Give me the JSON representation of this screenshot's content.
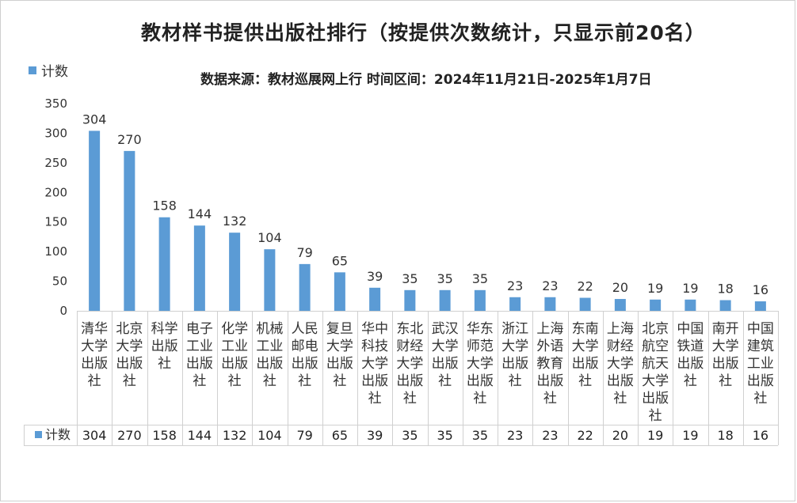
{
  "chart_data": {
    "type": "bar",
    "title": "教材样书提供出版社排行（按提供次数统计，只显示前20名）",
    "subtitle": "数据来源：教材巡展网上行  时间区间：2024年11月21日-2025年1月7日",
    "series_name": "计数",
    "color": "#5b9bd5",
    "ylim": [
      0,
      350
    ],
    "yticks": [
      0,
      50,
      100,
      150,
      200,
      250,
      300,
      350
    ],
    "grid": false,
    "legend": "top-left",
    "data_table": true,
    "categories": [
      [
        "清华",
        "大学",
        "出版",
        "社"
      ],
      [
        "北京",
        "大学",
        "出版",
        "社"
      ],
      [
        "科学",
        "出版",
        "社"
      ],
      [
        "电子",
        "工业",
        "出版",
        "社"
      ],
      [
        "化学",
        "工业",
        "出版",
        "社"
      ],
      [
        "机械",
        "工业",
        "出版",
        "社"
      ],
      [
        "人民",
        "邮电",
        "出版",
        "社"
      ],
      [
        "复旦",
        "大学",
        "出版",
        "社"
      ],
      [
        "华中",
        "科技",
        "大学",
        "出版",
        "社"
      ],
      [
        "东北",
        "财经",
        "大学",
        "出版",
        "社"
      ],
      [
        "武汉",
        "大学",
        "出版",
        "社"
      ],
      [
        "华东",
        "师范",
        "大学",
        "出版",
        "社"
      ],
      [
        "浙江",
        "大学",
        "出版",
        "社"
      ],
      [
        "上海",
        "外语",
        "教育",
        "出版",
        "社"
      ],
      [
        "东南",
        "大学",
        "出版",
        "社"
      ],
      [
        "上海",
        "财经",
        "大学",
        "出版",
        "社"
      ],
      [
        "北京",
        "航空",
        "航天",
        "大学",
        "出版",
        "社"
      ],
      [
        "中国",
        "铁道",
        "出版",
        "社"
      ],
      [
        "南开",
        "大学",
        "出版",
        "社"
      ],
      [
        "中国",
        "建筑",
        "工业",
        "出版",
        "社"
      ]
    ],
    "values": [
      304,
      270,
      158,
      144,
      132,
      104,
      79,
      65,
      39,
      35,
      35,
      35,
      23,
      23,
      22,
      20,
      19,
      19,
      18,
      16
    ]
  }
}
